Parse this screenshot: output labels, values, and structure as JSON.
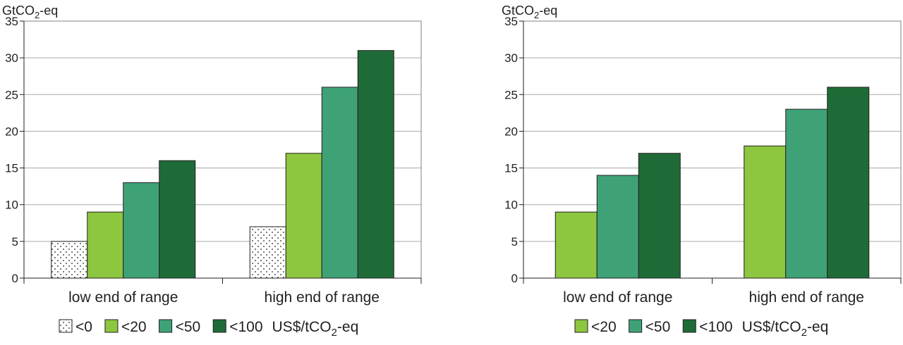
{
  "chart_data": [
    {
      "type": "bar",
      "ylabel_main": "GtCO",
      "ylabel_sub": "2",
      "ylabel_tail": "-eq",
      "ylim": [
        0,
        35
      ],
      "yticks": [
        0,
        5,
        10,
        15,
        20,
        25,
        30,
        35
      ],
      "grid": true,
      "categories": [
        "low end of range",
        "high end of range"
      ],
      "series": [
        {
          "name": "<0",
          "values": [
            5,
            7
          ],
          "color": "#ffffff",
          "pattern": "dots"
        },
        {
          "name": "<20",
          "values": [
            9,
            17
          ],
          "color": "#8dc63f"
        },
        {
          "name": "<50",
          "values": [
            13,
            26
          ],
          "color": "#3fa277"
        },
        {
          "name": "<100",
          "values": [
            16,
            31
          ],
          "color": "#1f6b37"
        }
      ],
      "legend_unit_main": "US$/tCO",
      "legend_unit_sub": "2",
      "legend_unit_tail": "-eq",
      "legend_position": "bottom"
    },
    {
      "type": "bar",
      "ylabel_main": "GtCO",
      "ylabel_sub": "2",
      "ylabel_tail": "-eq",
      "ylim": [
        0,
        35
      ],
      "yticks": [
        0,
        5,
        10,
        15,
        20,
        25,
        30,
        35
      ],
      "grid": true,
      "categories": [
        "low end of range",
        "high end of range"
      ],
      "series": [
        {
          "name": "<20",
          "values": [
            9,
            18
          ],
          "color": "#8dc63f"
        },
        {
          "name": "<50",
          "values": [
            14,
            23
          ],
          "color": "#3fa277"
        },
        {
          "name": "<100",
          "values": [
            17,
            26
          ],
          "color": "#1f6b37"
        }
      ],
      "legend_unit_main": "US$/tCO",
      "legend_unit_sub": "2",
      "legend_unit_tail": "-eq",
      "legend_position": "bottom"
    }
  ]
}
